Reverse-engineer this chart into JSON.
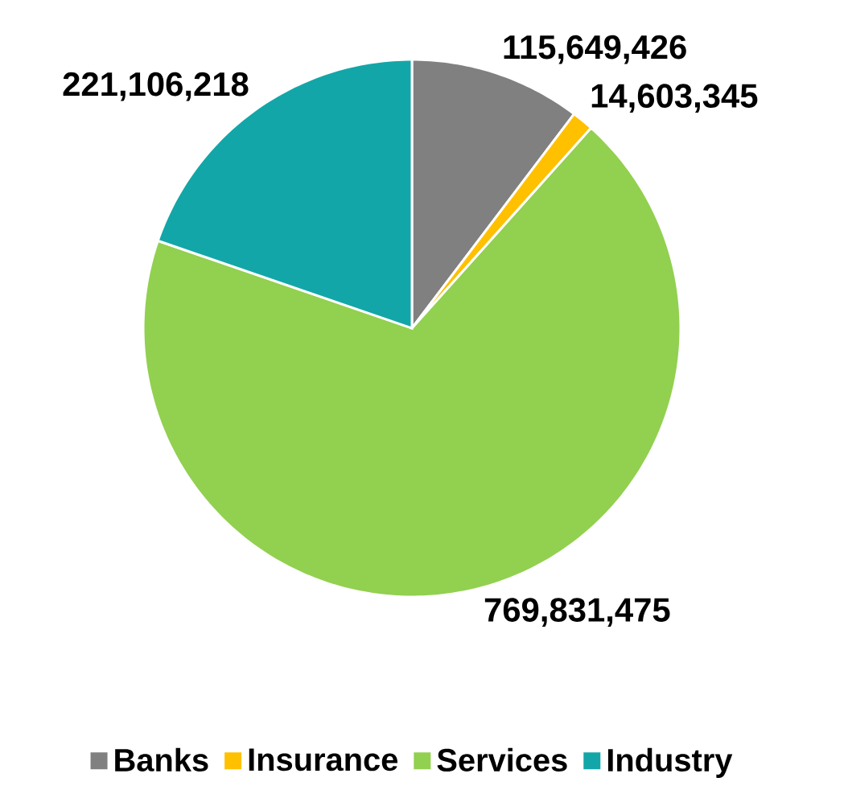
{
  "chart_data": {
    "type": "pie",
    "categories": [
      "Banks",
      "Insurance",
      "Services",
      "Industry"
    ],
    "values": [
      115649426,
      14603345,
      769831475,
      221106218
    ],
    "colors": [
      "#808080",
      "#ffc000",
      "#92d050",
      "#13a6a8"
    ],
    "value_labels": [
      "115,649,426",
      "14,603,345",
      "769,831,475",
      "221,106,218"
    ],
    "legend": "bottom"
  }
}
